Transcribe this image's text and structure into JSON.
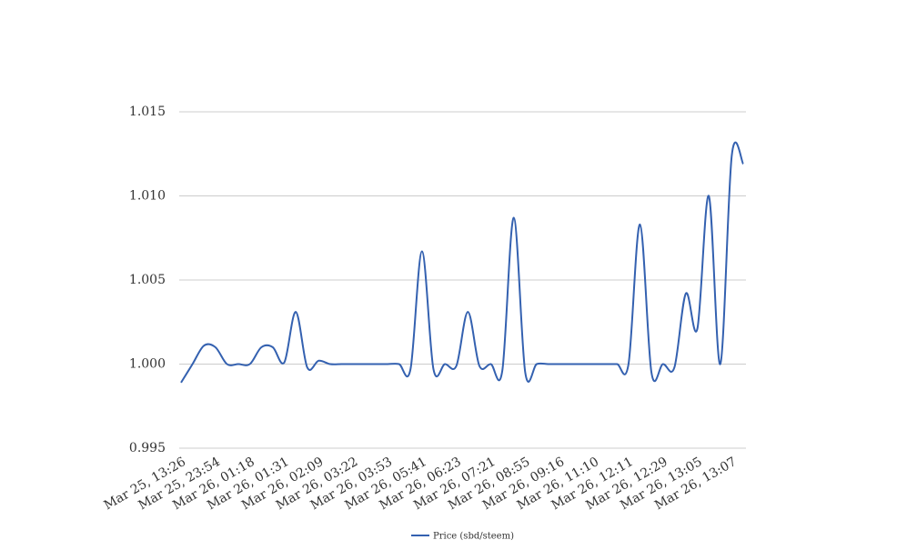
{
  "chart_data": {
    "type": "line",
    "categories": [
      "Mar 25, 13:26",
      null,
      null,
      "Mar 25, 23:54",
      null,
      null,
      "Mar 26, 01:18",
      null,
      null,
      "Mar 26, 01:31",
      null,
      null,
      "Mar 26, 02:09",
      null,
      null,
      "Mar 26, 03:22",
      null,
      null,
      "Mar 26, 03:53",
      null,
      null,
      "Mar 26, 05:41",
      null,
      null,
      "Mar 26, 06:23",
      null,
      null,
      "Mar 26, 07:21",
      null,
      null,
      "Mar 26, 08:55",
      null,
      null,
      "Mar 26, 09:16",
      null,
      null,
      "Mar 26, 11:10",
      null,
      null,
      "Mar 26, 12:11",
      null,
      null,
      "Mar 26, 12:29",
      null,
      null,
      "Mar 26, 13:05",
      null,
      null,
      "Mar 26, 13:07",
      null
    ],
    "series": [
      {
        "name": "Price (sbd/steem)",
        "color": "#3461b0",
        "values": [
          0.9989,
          1.0,
          1.0011,
          1.001,
          1.0,
          1.0,
          1.0,
          1.001,
          1.001,
          1.0001,
          1.0031,
          0.9998,
          1.0002,
          1.0,
          1.0,
          1.0,
          1.0,
          1.0,
          1.0,
          1.0,
          0.9997,
          1.0067,
          0.9997,
          1.0,
          0.9999,
          1.0031,
          0.9999,
          1.0,
          0.9996,
          1.0087,
          0.9995,
          1.0,
          1.0,
          1.0,
          1.0,
          1.0,
          1.0,
          1.0,
          1.0,
          1.0,
          1.0083,
          0.9995,
          1.0,
          0.9998,
          1.0042,
          1.0021,
          1.01,
          1.0,
          1.0124,
          1.0119
        ]
      }
    ],
    "ylim": [
      0.995,
      1.015
    ],
    "yticks": [
      0.995,
      {
        "value": 1.0,
        "label": "1.000"
      },
      1.005,
      {
        "value": 1.01,
        "label": "1.010"
      },
      1.015
    ],
    "grid": true,
    "legend": "bottom"
  }
}
